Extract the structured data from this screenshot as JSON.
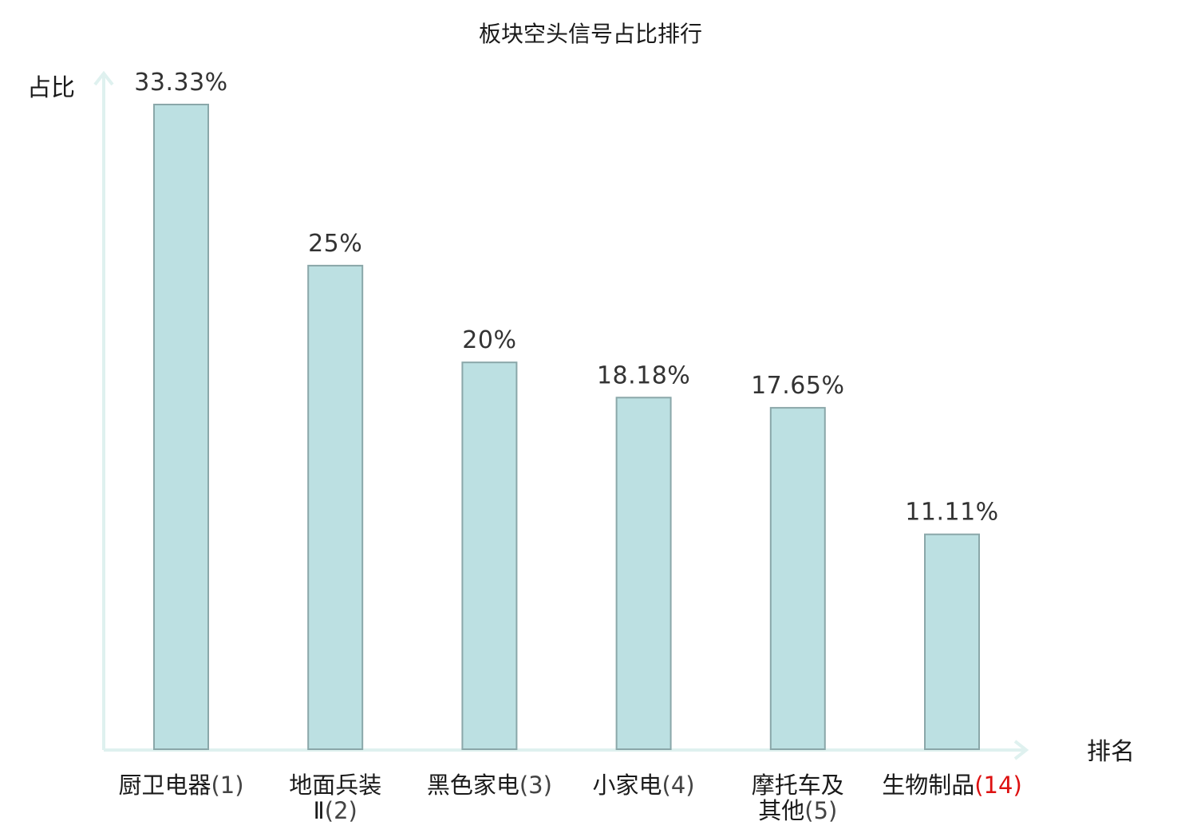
{
  "chart_data": {
    "type": "bar",
    "title": "板块空头信号占比排行",
    "ylabel": "占比",
    "xlabel": "排名",
    "ylim": [
      0,
      33.33
    ],
    "grid": false,
    "legend": "none",
    "categories": [
      {
        "name_lines": [
          "厨卫电器(1)"
        ],
        "highlight": false
      },
      {
        "name_lines": [
          "地面兵装",
          "Ⅱ(2)"
        ],
        "highlight": false
      },
      {
        "name_lines": [
          "黑色家电(3)"
        ],
        "highlight": false
      },
      {
        "name_lines": [
          "小家电(4)"
        ],
        "highlight": false
      },
      {
        "name_lines": [
          "摩托车及",
          "其他(5)"
        ],
        "highlight": false
      },
      {
        "name_lines": [
          "生物制品(14)"
        ],
        "highlight": true
      }
    ],
    "values": [
      33.33,
      25,
      20,
      18.18,
      17.65,
      11.11
    ],
    "value_labels": [
      "33.33%",
      "25%",
      "20%",
      "18.18%",
      "17.65%",
      "11.11%"
    ],
    "colors": {
      "bar_fill": "#bce0e2",
      "bar_stroke": "#8aa7a9",
      "axis": "#dff1ef",
      "highlight": "#dd1111"
    }
  }
}
